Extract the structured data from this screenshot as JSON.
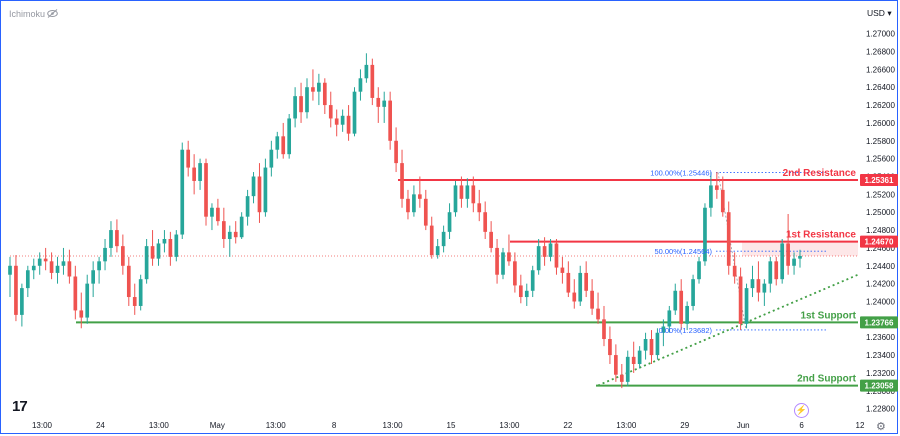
{
  "header": {
    "indicator": "Ichimoku",
    "currency": "USD"
  },
  "footer": {
    "logo": "17",
    "bolt": "⚡",
    "gear": "⚙"
  },
  "chart_data": {
    "type": "candlestick",
    "ylim": [
      1.2274,
      1.2722
    ],
    "y_ticks": [
      "1.27000",
      "1.26800",
      "1.26600",
      "1.26400",
      "1.26200",
      "1.26000",
      "1.25800",
      "1.25600",
      "1.25400",
      "1.25200",
      "1.25000",
      "1.24800",
      "1.24600",
      "1.24400",
      "1.24200",
      "1.24000",
      "1.23800",
      "1.23600",
      "1.23400",
      "1.23200",
      "1.23000",
      "1.22800"
    ],
    "x_ticks": [
      "13:00",
      "24",
      "13:00",
      "May",
      "13:00",
      "8",
      "13:00",
      "15",
      "13:00",
      "22",
      "13:00",
      "29",
      "Jun",
      "6",
      "12"
    ],
    "colors": {
      "up": "#26a69a",
      "down": "#ef5350",
      "resistance": "#f23645",
      "support": "#43a047",
      "fib": "#2962ff"
    },
    "levels": [
      {
        "name": "2nd Resistance",
        "price": "1.25361",
        "value": 1.25361,
        "kind": "resistance"
      },
      {
        "name": "1st Resistance",
        "price": "1.24670",
        "value": 1.2467,
        "kind": "resistance"
      },
      {
        "name": "1st Support",
        "price": "1.23766",
        "value": 1.23766,
        "kind": "support"
      },
      {
        "name": "2nd Support",
        "price": "1.23058",
        "value": 1.23058,
        "kind": "support"
      }
    ],
    "fib": [
      {
        "label": "100.00%(1.25446)",
        "value": 1.25446
      },
      {
        "label": "50.00%(1.24564)",
        "value": 1.24564
      },
      {
        "label": "0.00%(1.23682)",
        "value": 1.23682
      }
    ],
    "current_price": 1.2451,
    "candles": [
      [
        1.243,
        1.245,
        1.2405,
        1.244
      ],
      [
        1.244,
        1.2452,
        1.2378,
        1.2385
      ],
      [
        1.2385,
        1.242,
        1.2372,
        1.2415
      ],
      [
        1.2415,
        1.244,
        1.2405,
        1.2435
      ],
      [
        1.2435,
        1.2448,
        1.2425,
        1.244
      ],
      [
        1.244,
        1.2455,
        1.243,
        1.2448
      ],
      [
        1.2448,
        1.246,
        1.2435,
        1.2445
      ],
      [
        1.2445,
        1.2455,
        1.2425,
        1.2432
      ],
      [
        1.2432,
        1.245,
        1.242,
        1.244
      ],
      [
        1.244,
        1.246,
        1.243,
        1.2445
      ],
      [
        1.2445,
        1.2458,
        1.242,
        1.2428
      ],
      [
        1.2428,
        1.244,
        1.238,
        1.239
      ],
      [
        1.239,
        1.241,
        1.237,
        1.2382
      ],
      [
        1.2382,
        1.243,
        1.2375,
        1.242
      ],
      [
        1.242,
        1.2445,
        1.2405,
        1.2435
      ],
      [
        1.2435,
        1.245,
        1.242,
        1.2445
      ],
      [
        1.2445,
        1.247,
        1.2435,
        1.246
      ],
      [
        1.246,
        1.249,
        1.245,
        1.248
      ],
      [
        1.248,
        1.2492,
        1.2455,
        1.2462
      ],
      [
        1.2462,
        1.2475,
        1.243,
        1.244
      ],
      [
        1.244,
        1.245,
        1.2395,
        1.2405
      ],
      [
        1.2405,
        1.242,
        1.2385,
        1.2395
      ],
      [
        1.2395,
        1.243,
        1.239,
        1.2425
      ],
      [
        1.2425,
        1.247,
        1.242,
        1.2462
      ],
      [
        1.2462,
        1.248,
        1.244,
        1.2448
      ],
      [
        1.2448,
        1.247,
        1.244,
        1.2465
      ],
      [
        1.2465,
        1.248,
        1.2455,
        1.247
      ],
      [
        1.247,
        1.2478,
        1.244,
        1.245
      ],
      [
        1.245,
        1.248,
        1.2445,
        1.2475
      ],
      [
        1.2475,
        1.2578,
        1.247,
        1.257
      ],
      [
        1.257,
        1.258,
        1.254,
        1.255
      ],
      [
        1.255,
        1.2565,
        1.252,
        1.2535
      ],
      [
        1.2535,
        1.256,
        1.2525,
        1.2555
      ],
      [
        1.2555,
        1.256,
        1.2485,
        1.2495
      ],
      [
        1.2495,
        1.251,
        1.248,
        1.2505
      ],
      [
        1.2505,
        1.2515,
        1.2485,
        1.249
      ],
      [
        1.249,
        1.2505,
        1.246,
        1.247
      ],
      [
        1.247,
        1.2485,
        1.245,
        1.2478
      ],
      [
        1.2478,
        1.249,
        1.2465,
        1.2472
      ],
      [
        1.2472,
        1.25,
        1.247,
        1.2495
      ],
      [
        1.2495,
        1.2525,
        1.2485,
        1.2518
      ],
      [
        1.2518,
        1.2545,
        1.251,
        1.254
      ],
      [
        1.254,
        1.2555,
        1.2488,
        1.25
      ],
      [
        1.25,
        1.256,
        1.2495,
        1.255
      ],
      [
        1.255,
        1.258,
        1.254,
        1.257
      ],
      [
        1.257,
        1.259,
        1.256,
        1.2585
      ],
      [
        1.2585,
        1.26,
        1.256,
        1.2565
      ],
      [
        1.2565,
        1.261,
        1.256,
        1.2605
      ],
      [
        1.2605,
        1.264,
        1.2595,
        1.263
      ],
      [
        1.263,
        1.2645,
        1.26,
        1.2612
      ],
      [
        1.2612,
        1.265,
        1.2605,
        1.264
      ],
      [
        1.264,
        1.266,
        1.2625,
        1.2635
      ],
      [
        1.2635,
        1.2655,
        1.262,
        1.2645
      ],
      [
        1.2645,
        1.265,
        1.261,
        1.262
      ],
      [
        1.262,
        1.2635,
        1.2595,
        1.2605
      ],
      [
        1.2605,
        1.2615,
        1.2585,
        1.2598
      ],
      [
        1.2598,
        1.2615,
        1.259,
        1.2608
      ],
      [
        1.2608,
        1.262,
        1.258,
        1.2588
      ],
      [
        1.2588,
        1.264,
        1.2585,
        1.2635
      ],
      [
        1.2635,
        1.266,
        1.2625,
        1.265
      ],
      [
        1.265,
        1.2678,
        1.2645,
        1.2665
      ],
      [
        1.2665,
        1.2672,
        1.262,
        1.2628
      ],
      [
        1.2628,
        1.264,
        1.26,
        1.2618
      ],
      [
        1.2618,
        1.2635,
        1.26,
        1.2625
      ],
      [
        1.2625,
        1.2635,
        1.257,
        1.258
      ],
      [
        1.258,
        1.2595,
        1.2545,
        1.2555
      ],
      [
        1.2555,
        1.257,
        1.2505,
        1.2515
      ],
      [
        1.2515,
        1.2525,
        1.2492,
        1.25
      ],
      [
        1.25,
        1.253,
        1.2495,
        1.252
      ],
      [
        1.252,
        1.254,
        1.2505,
        1.2515
      ],
      [
        1.2515,
        1.2525,
        1.248,
        1.2485
      ],
      [
        1.2485,
        1.2495,
        1.2448,
        1.2452
      ],
      [
        1.2452,
        1.247,
        1.2448,
        1.2462
      ],
      [
        1.2462,
        1.2485,
        1.2455,
        1.2478
      ],
      [
        1.2478,
        1.251,
        1.247,
        1.25
      ],
      [
        1.25,
        1.2535,
        1.2495,
        1.253
      ],
      [
        1.253,
        1.254,
        1.2505,
        1.2515
      ],
      [
        1.2515,
        1.2538,
        1.2505,
        1.253
      ],
      [
        1.253,
        1.254,
        1.25,
        1.251
      ],
      [
        1.251,
        1.2525,
        1.249,
        1.25
      ],
      [
        1.25,
        1.2512,
        1.247,
        1.2478
      ],
      [
        1.2478,
        1.249,
        1.2455,
        1.246
      ],
      [
        1.246,
        1.247,
        1.242,
        1.243
      ],
      [
        1.243,
        1.246,
        1.2425,
        1.2455
      ],
      [
        1.2455,
        1.2475,
        1.244,
        1.2445
      ],
      [
        1.2445,
        1.2455,
        1.241,
        1.2418
      ],
      [
        1.2418,
        1.243,
        1.2398,
        1.2405
      ],
      [
        1.2405,
        1.242,
        1.2395,
        1.2412
      ],
      [
        1.2412,
        1.244,
        1.2405,
        1.2435
      ],
      [
        1.2435,
        1.247,
        1.243,
        1.2462
      ],
      [
        1.2462,
        1.2472,
        1.244,
        1.245
      ],
      [
        1.245,
        1.247,
        1.2445,
        1.2465
      ],
      [
        1.2465,
        1.247,
        1.243,
        1.2438
      ],
      [
        1.2438,
        1.245,
        1.242,
        1.2432
      ],
      [
        1.2432,
        1.2445,
        1.2405,
        1.241
      ],
      [
        1.241,
        1.2425,
        1.2392,
        1.24
      ],
      [
        1.24,
        1.244,
        1.2395,
        1.2432
      ],
      [
        1.2432,
        1.2445,
        1.2405,
        1.2412
      ],
      [
        1.2412,
        1.2425,
        1.2385,
        1.2392
      ],
      [
        1.2392,
        1.241,
        1.2375,
        1.238
      ],
      [
        1.238,
        1.2395,
        1.235,
        1.2358
      ],
      [
        1.2358,
        1.2372,
        1.233,
        1.234
      ],
      [
        1.234,
        1.2352,
        1.231,
        1.2318
      ],
      [
        1.2318,
        1.233,
        1.2303,
        1.231
      ],
      [
        1.231,
        1.2345,
        1.2305,
        1.2338
      ],
      [
        1.2338,
        1.2355,
        1.232,
        1.233
      ],
      [
        1.233,
        1.235,
        1.2325,
        1.2345
      ],
      [
        1.2345,
        1.2365,
        1.2335,
        1.2358
      ],
      [
        1.2358,
        1.2368,
        1.233,
        1.234
      ],
      [
        1.234,
        1.237,
        1.2335,
        1.2365
      ],
      [
        1.2365,
        1.238,
        1.235,
        1.2372
      ],
      [
        1.2372,
        1.2395,
        1.2365,
        1.239
      ],
      [
        1.239,
        1.242,
        1.2385,
        1.2412
      ],
      [
        1.2412,
        1.2425,
        1.2368,
        1.2375
      ],
      [
        1.2375,
        1.24,
        1.2368,
        1.2395
      ],
      [
        1.2395,
        1.243,
        1.239,
        1.2425
      ],
      [
        1.2425,
        1.245,
        1.242,
        1.2445
      ],
      [
        1.2445,
        1.251,
        1.244,
        1.2505
      ],
      [
        1.2505,
        1.2545,
        1.2495,
        1.253
      ],
      [
        1.253,
        1.2545,
        1.2515,
        1.2525
      ],
      [
        1.2525,
        1.254,
        1.2495,
        1.25
      ],
      [
        1.25,
        1.2512,
        1.243,
        1.244
      ],
      [
        1.244,
        1.2455,
        1.242,
        1.2428
      ],
      [
        1.2428,
        1.2438,
        1.2368,
        1.2375
      ],
      [
        1.2375,
        1.242,
        1.237,
        1.2415
      ],
      [
        1.2415,
        1.244,
        1.2405,
        1.2425
      ],
      [
        1.2425,
        1.2445,
        1.24,
        1.241
      ],
      [
        1.241,
        1.2425,
        1.2395,
        1.242
      ],
      [
        1.242,
        1.245,
        1.241,
        1.2445
      ],
      [
        1.2445,
        1.245,
        1.2418,
        1.2425
      ],
      [
        1.2425,
        1.247,
        1.242,
        1.2465
      ],
      [
        1.2465,
        1.2498,
        1.243,
        1.244
      ],
      [
        1.244,
        1.2455,
        1.243,
        1.2448
      ],
      [
        1.2448,
        1.2458,
        1.2438,
        1.2451
      ]
    ]
  }
}
